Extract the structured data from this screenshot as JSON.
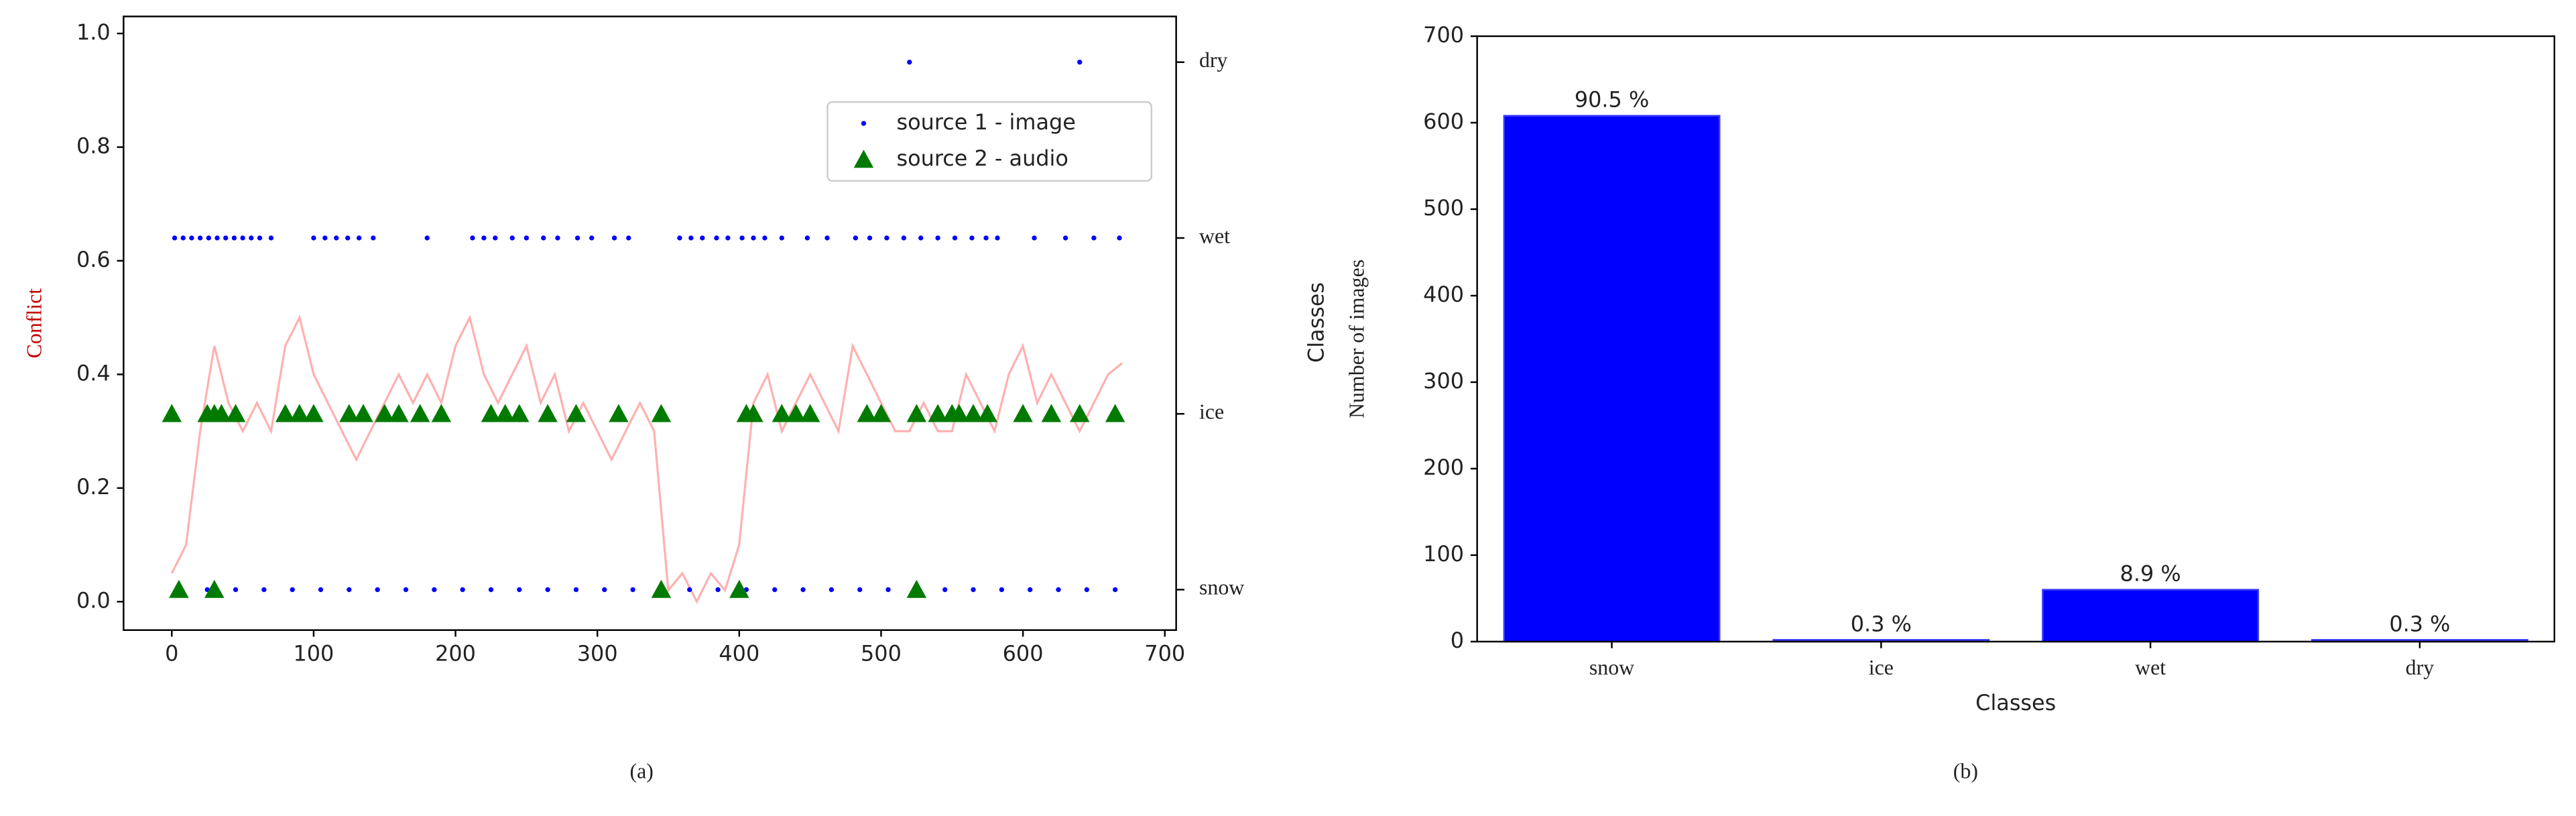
{
  "chart_data": [
    {
      "type": "line",
      "caption": "(a)",
      "ylabel": "Conflict",
      "xlim": [
        -34,
        708
      ],
      "xticks": [
        0,
        100,
        200,
        300,
        400,
        500,
        600,
        700
      ],
      "ylim": [
        -0.05,
        1.03
      ],
      "yticks": [
        {
          "value": 0,
          "label": "0.0"
        },
        0.2,
        0.4,
        0.6,
        0.8,
        {
          "value": 1,
          "label": "1.0"
        }
      ],
      "y2lim": [
        -0.23,
        3.26
      ],
      "y2ticks": [
        {
          "value": 0,
          "label": "snow"
        },
        {
          "value": 1,
          "label": "ice"
        },
        {
          "value": 2,
          "label": "wet"
        },
        {
          "value": 3,
          "label": "dry"
        }
      ],
      "legend": "upper right",
      "series": [
        {
          "type": "line",
          "color": "#ffb0b0",
          "x": [
            0,
            10,
            20,
            30,
            40,
            50,
            60,
            70,
            80,
            90,
            100,
            110,
            120,
            130,
            140,
            150,
            160,
            170,
            180,
            190,
            200,
            210,
            220,
            230,
            240,
            250,
            260,
            270,
            280,
            290,
            300,
            310,
            320,
            330,
            340,
            350,
            360,
            370,
            380,
            390,
            400,
            410,
            420,
            430,
            440,
            450,
            460,
            470,
            480,
            490,
            500,
            510,
            520,
            530,
            540,
            550,
            560,
            570,
            580,
            590,
            600,
            610,
            620,
            630,
            640,
            650,
            660,
            670
          ],
          "values": [
            0.05,
            0.1,
            0.3,
            0.45,
            0.35,
            0.3,
            0.35,
            0.3,
            0.45,
            0.5,
            0.4,
            0.35,
            0.3,
            0.25,
            0.3,
            0.35,
            0.4,
            0.35,
            0.4,
            0.35,
            0.45,
            0.5,
            0.4,
            0.35,
            0.4,
            0.45,
            0.35,
            0.4,
            0.3,
            0.35,
            0.3,
            0.25,
            0.3,
            0.35,
            0.3,
            0.02,
            0.05,
            0,
            0.05,
            0.02,
            0.1,
            0.35,
            0.4,
            0.3,
            0.35,
            0.4,
            0.35,
            0.3,
            0.45,
            0.4,
            0.35,
            0.3,
            0.3,
            0.35,
            0.3,
            0.3,
            0.4,
            0.35,
            0.3,
            0.4,
            0.45,
            0.35,
            0.4,
            0.35,
            0.3,
            0.35,
            0.4,
            0.42
          ]
        },
        {
          "type": "scatter",
          "name": "source 1 - image",
          "color": "#0000ff",
          "marker": "dot",
          "axis": "y2",
          "x": [
            2,
            8,
            14,
            20,
            26,
            32,
            38,
            44,
            50,
            56,
            62,
            70,
            100,
            108,
            116,
            124,
            132,
            142,
            180,
            212,
            220,
            228,
            240,
            250,
            262,
            272,
            286,
            296,
            312,
            322,
            358,
            366,
            374,
            384,
            392,
            402,
            410,
            418,
            430,
            448,
            462,
            482,
            492,
            504,
            516,
            528,
            540,
            552,
            564,
            574,
            582,
            608,
            630,
            650,
            668,
            520,
            640,
            5,
            25,
            45,
            65,
            85,
            105,
            125,
            145,
            165,
            185,
            205,
            225,
            245,
            265,
            285,
            305,
            325,
            345,
            365,
            385,
            405,
            425,
            445,
            465,
            485,
            505,
            525,
            545,
            565,
            585,
            605,
            625,
            645,
            665
          ],
          "values": [
            2,
            2,
            2,
            2,
            2,
            2,
            2,
            2,
            2,
            2,
            2,
            2,
            2,
            2,
            2,
            2,
            2,
            2,
            2,
            2,
            2,
            2,
            2,
            2,
            2,
            2,
            2,
            2,
            2,
            2,
            2,
            2,
            2,
            2,
            2,
            2,
            2,
            2,
            2,
            2,
            2,
            2,
            2,
            2,
            2,
            2,
            2,
            2,
            2,
            2,
            2,
            2,
            2,
            2,
            2,
            3,
            3,
            0,
            0,
            0,
            0,
            0,
            0,
            0,
            0,
            0,
            0,
            0,
            0,
            0,
            0,
            0,
            0,
            0,
            0,
            0,
            0,
            0,
            0,
            0,
            0,
            0,
            0,
            0,
            0,
            0,
            0,
            0,
            0,
            0,
            0
          ]
        },
        {
          "type": "scatter",
          "name": "source 2 - audio",
          "color": "#007a00",
          "marker": "triangle",
          "axis": "y2",
          "x": [
            0,
            25,
            30,
            35,
            45,
            80,
            90,
            100,
            125,
            135,
            150,
            160,
            175,
            190,
            225,
            235,
            245,
            265,
            285,
            315,
            345,
            405,
            410,
            430,
            440,
            450,
            490,
            500,
            525,
            540,
            550,
            555,
            565,
            575,
            600,
            620,
            640,
            665,
            5,
            30,
            345,
            400,
            525
          ],
          "values": [
            1,
            1,
            1,
            1,
            1,
            1,
            1,
            1,
            1,
            1,
            1,
            1,
            1,
            1,
            1,
            1,
            1,
            1,
            1,
            1,
            1,
            1,
            1,
            1,
            1,
            1,
            1,
            1,
            1,
            1,
            1,
            1,
            1,
            1,
            1,
            1,
            1,
            1,
            0,
            0,
            0,
            0,
            0
          ]
        }
      ]
    },
    {
      "type": "bar",
      "caption": "(b)",
      "xlabel": "Classes",
      "ylabel": "Number of images",
      "ylabel_small": "Classes",
      "categories": [
        "snow",
        "ice",
        "wet",
        "dry"
      ],
      "values": [
        608,
        2,
        60,
        2
      ],
      "value_labels": [
        "90.5 %",
        "0.3 %",
        "8.9 %",
        "0.3 %"
      ],
      "color": "#0000ff",
      "ylim": [
        0,
        700
      ],
      "yticks": [
        0,
        100,
        200,
        300,
        400,
        500,
        600,
        700
      ]
    }
  ]
}
